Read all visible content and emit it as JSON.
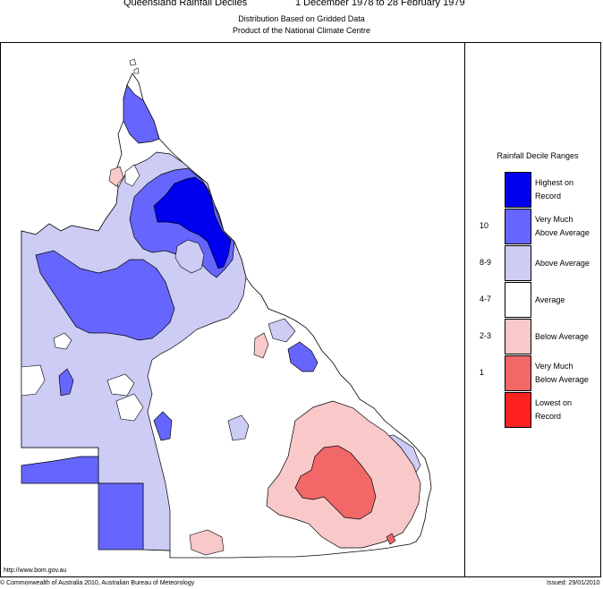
{
  "header": {
    "title": "Queensland Rainfall Deciles",
    "period": "1 December 1978 to 28 February 1979",
    "subtitle1": "Distribution Based on Gridded Data",
    "subtitle2": "Product of the National Climate Centre"
  },
  "legend": {
    "title": "Rainfall Decile Ranges",
    "items": [
      {
        "decile": "",
        "line1": "Highest on",
        "line2": "Record",
        "color": "#0000ee"
      },
      {
        "decile": "10",
        "line1": "Very Much",
        "line2": "Above Average",
        "color": "#6666ff"
      },
      {
        "decile": "8-9",
        "line1": "Above Average",
        "line2": "",
        "color": "#ccccf5"
      },
      {
        "decile": "4-7",
        "line1": "Average",
        "line2": "",
        "color": "#ffffff"
      },
      {
        "decile": "2-3",
        "line1": "Below Average",
        "line2": "",
        "color": "#f9c8c8"
      },
      {
        "decile": "1",
        "line1": "Very Much",
        "line2": "Below Average",
        "color": "#f26868"
      },
      {
        "decile": "",
        "line1": "Lowest on",
        "line2": "Record",
        "color": "#ff2020"
      }
    ]
  },
  "footer": {
    "url": "http://www.bom.gov.au",
    "copyright": "© Commonwealth of Australia 2010, Australian Bureau of Meteorology",
    "issued": "Issued: 29/01/2010"
  }
}
